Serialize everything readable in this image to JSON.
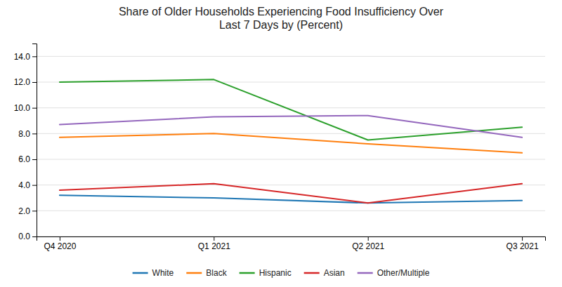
{
  "chart_data": {
    "type": "line",
    "title": "Share of Older Households Experiencing Food Insufficiency Over\nLast 7 Days by (Percent)",
    "categories": [
      "Q4 2020",
      "Q1 2021",
      "Q2 2021",
      "Q3 2021"
    ],
    "series": [
      {
        "name": "White",
        "values": [
          3.2,
          3.0,
          2.6,
          2.8
        ]
      },
      {
        "name": "Black",
        "values": [
          7.7,
          8.0,
          7.2,
          6.5
        ]
      },
      {
        "name": "Hispanic",
        "values": [
          12.0,
          12.2,
          7.5,
          8.5
        ]
      },
      {
        "name": "Asian",
        "values": [
          3.6,
          4.1,
          2.6,
          4.1
        ]
      },
      {
        "name": "Other/Multiple",
        "values": [
          8.7,
          9.3,
          9.4,
          7.7
        ]
      }
    ],
    "ylim": [
      0,
      15.0
    ],
    "yticks": [
      {
        "value": 0.0,
        "label": "0.0"
      },
      {
        "value": 2.0,
        "label": "2.0"
      },
      {
        "value": 4.0,
        "label": "4.0"
      },
      {
        "value": 6.0,
        "label": "6.0"
      },
      {
        "value": 8.0,
        "label": "8.0"
      },
      {
        "value": 10.0,
        "label": "10.0"
      },
      {
        "value": 12.0,
        "label": "12.0"
      },
      {
        "value": 14.0,
        "label": "14.0"
      }
    ],
    "grid": true,
    "legend": "bottom"
  }
}
